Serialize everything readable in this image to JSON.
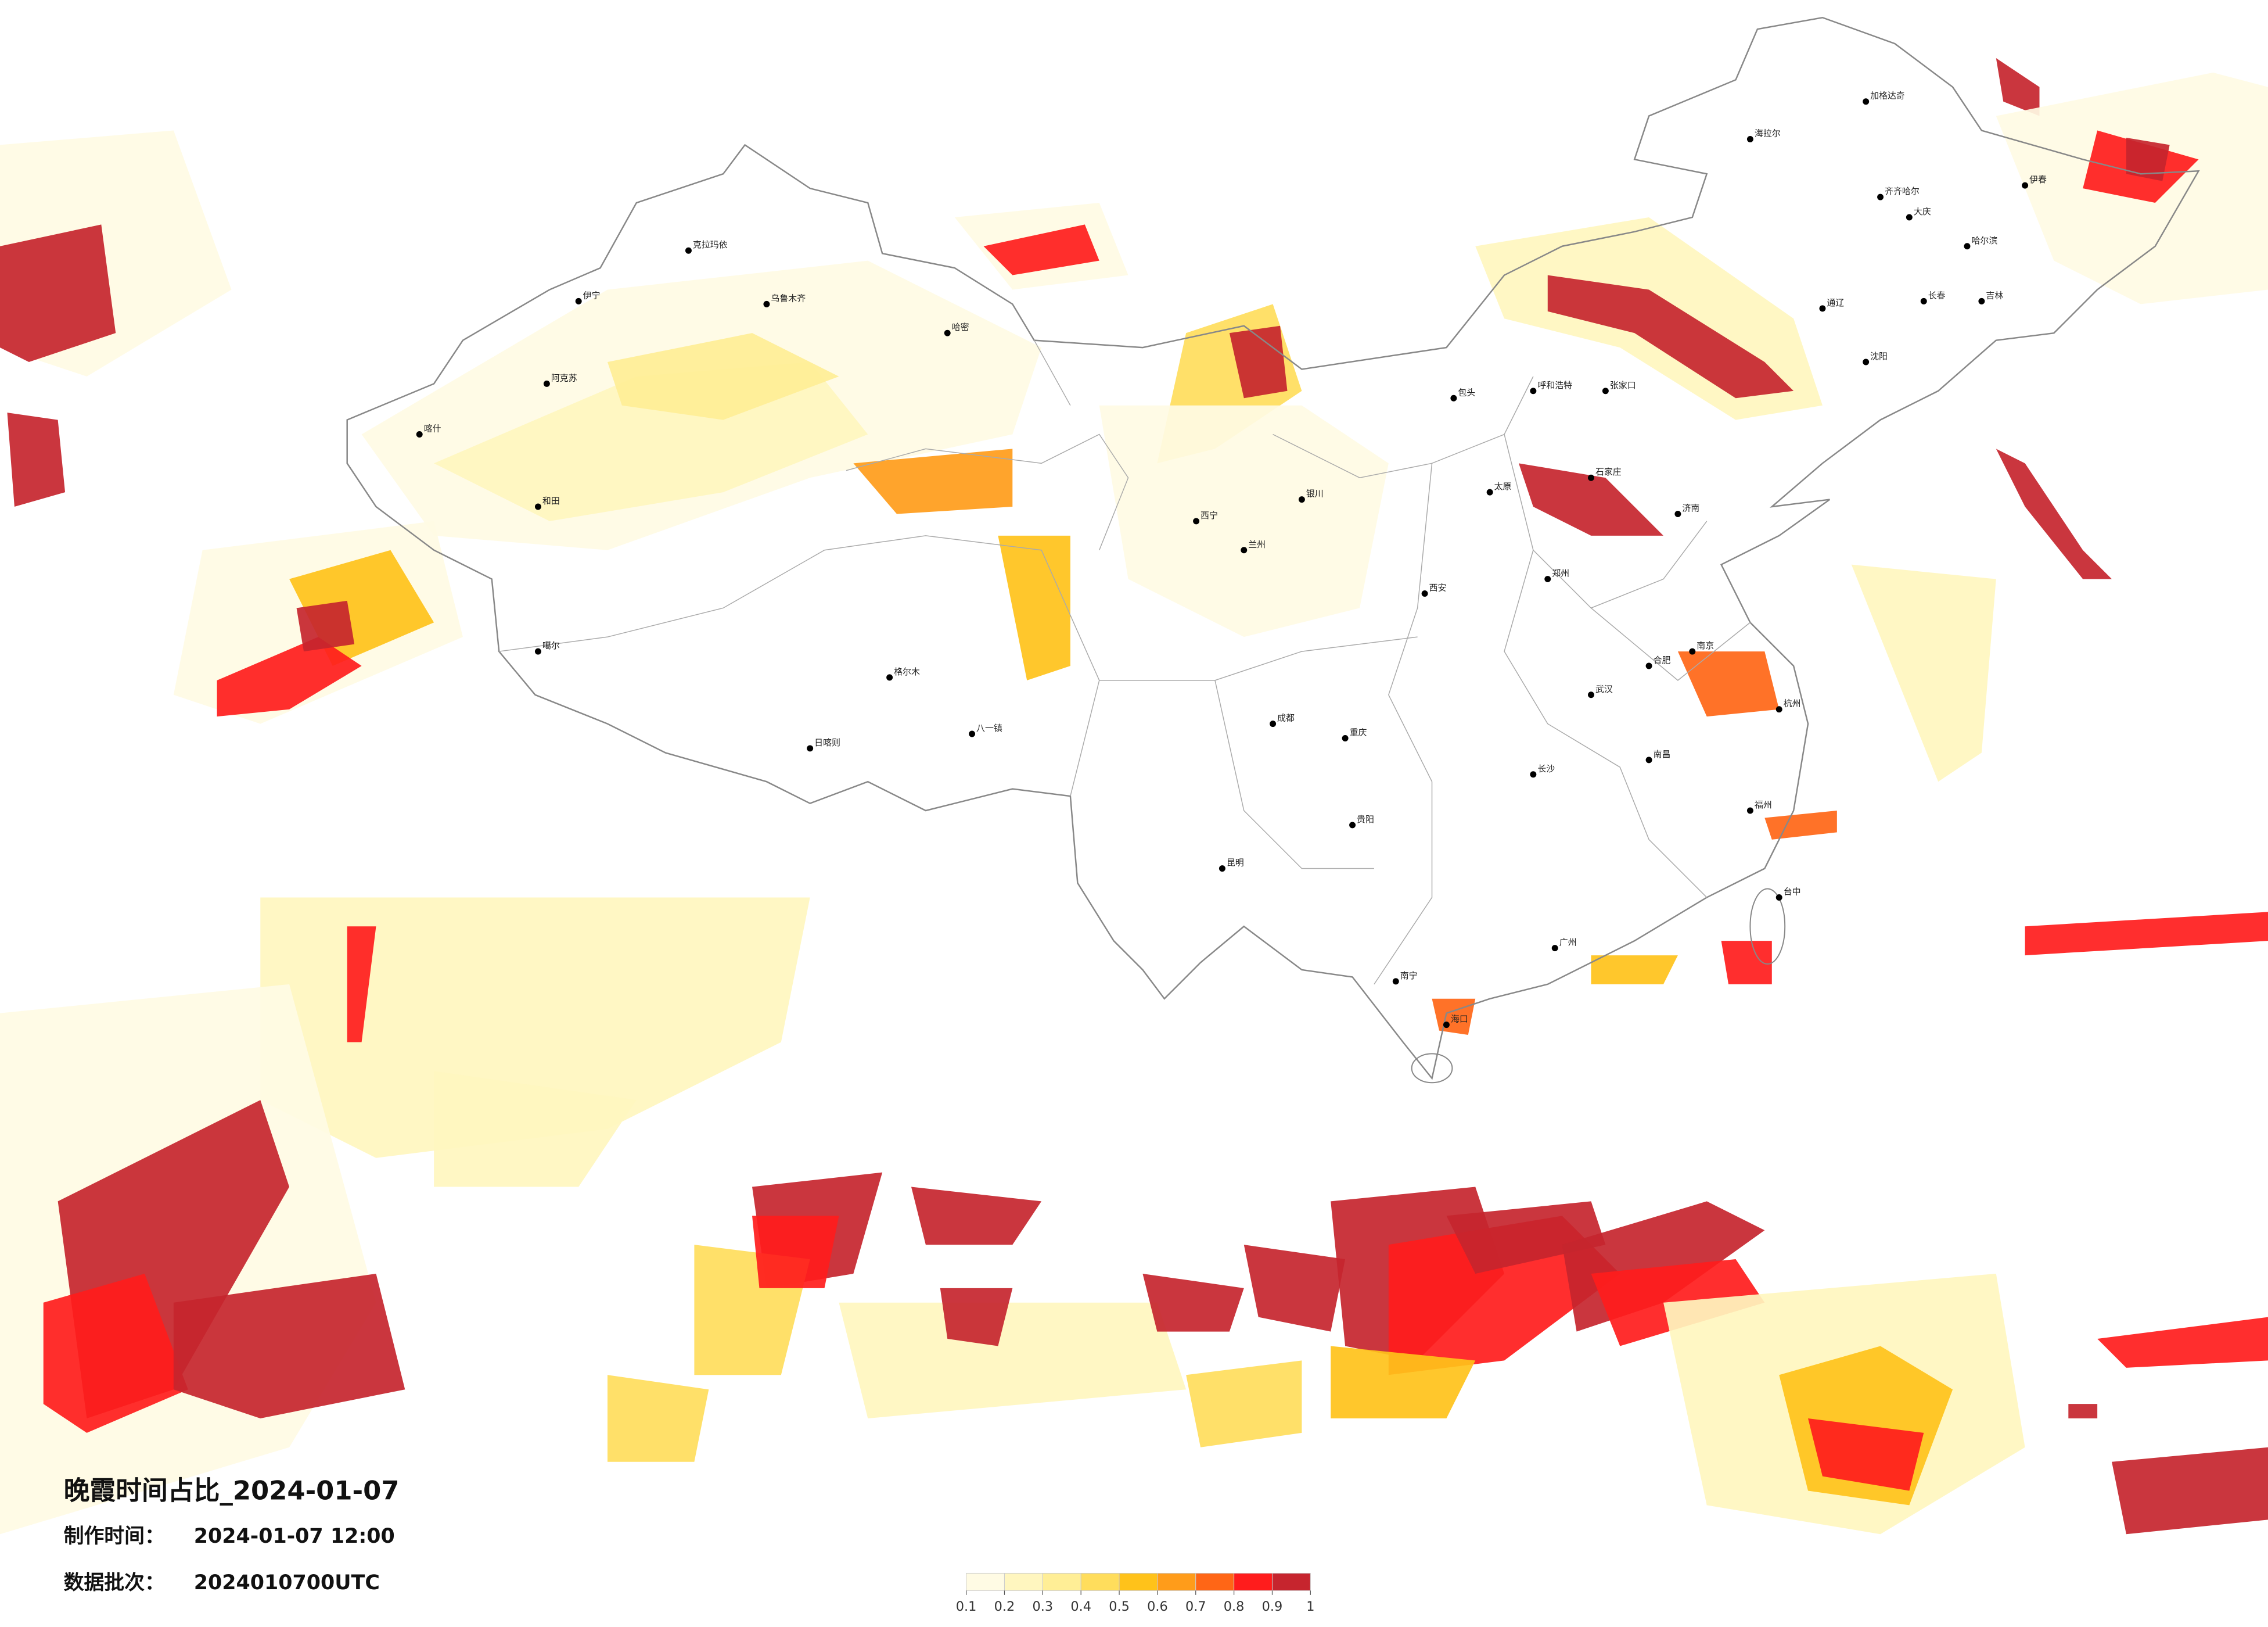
{
  "header": {
    "title": "晚霞时间占比_2024-01-07",
    "made_label": "制作时间：",
    "made_time": "2024-01-07 12:00",
    "batch_label": "数据批次：",
    "batch": "2024010700UTC"
  },
  "legend": {
    "colors": [
      "#fffbe4",
      "#fff6bf",
      "#ffee96",
      "#ffdd5c",
      "#ffc21a",
      "#ff9c1a",
      "#ff6616",
      "#ff1c1c",
      "#c6252e"
    ],
    "ticks": [
      0.1,
      0.2,
      0.3,
      0.4,
      0.5,
      0.6,
      0.7,
      0.8,
      0.9,
      1
    ]
  },
  "cities": [
    "加格达奇",
    "海拉尔",
    "齐齐哈尔",
    "大庆",
    "伊春",
    "哈尔滨",
    "长春",
    "吉林",
    "沈阳",
    "通辽",
    "呼和浩特",
    "包头",
    "张家口",
    "石家庄",
    "太原",
    "济南",
    "郑州",
    "西安",
    "银川",
    "西宁",
    "兰州",
    "格尔木",
    "日喀则",
    "八一镇",
    "噶尔",
    "和田",
    "喀什",
    "阿克苏",
    "伊宁",
    "克拉玛依",
    "乌鲁木齐",
    "哈密",
    "重庆",
    "成都",
    "贵阳",
    "昆明",
    "南宁",
    "海口",
    "广州",
    "福州",
    "台中",
    "杭州",
    "南京",
    "合肥",
    "武汉",
    "长沙",
    "南昌"
  ]
}
